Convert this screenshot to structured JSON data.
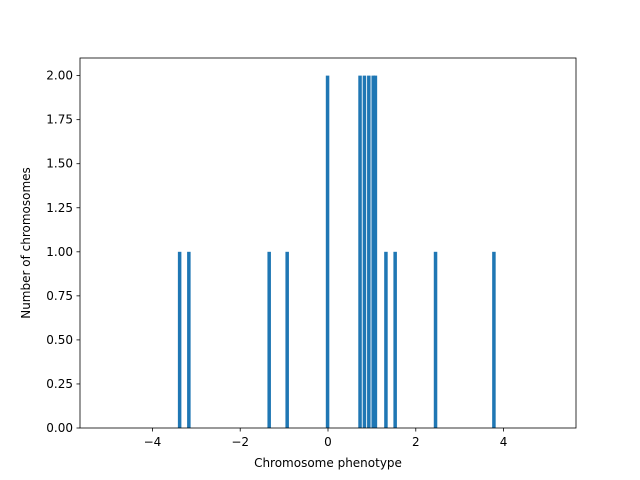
{
  "chart_data": {
    "type": "bar",
    "title": "",
    "xlabel": "Chromosome phenotype",
    "ylabel": "Number of chromosomes",
    "xlim": [
      -5.65,
      5.65
    ],
    "ylim": [
      0,
      2.1
    ],
    "xticks": [
      -4,
      -2,
      0,
      2,
      4
    ],
    "xtick_labels": [
      "−4",
      "−2",
      "0",
      "2",
      "4"
    ],
    "yticks": [
      0,
      0.25,
      0.5,
      0.75,
      1.0,
      1.25,
      1.5,
      1.75,
      2.0
    ],
    "ytick_labels": [
      "0.00",
      "0.25",
      "0.50",
      "0.75",
      "1.00",
      "1.25",
      "1.50",
      "1.75",
      "2.00"
    ],
    "bar_width": 0.08,
    "x": [
      -3.38,
      -3.17,
      -1.34,
      -0.93,
      -0.01,
      0.73,
      0.83,
      0.93,
      1.03,
      1.08,
      1.32,
      1.53,
      2.45,
      3.78
    ],
    "values": [
      1,
      1,
      1,
      1,
      2,
      2,
      2,
      2,
      2,
      2,
      1,
      1,
      1,
      1
    ],
    "bar_color": "#1f77b4",
    "grid": false,
    "legend": "none"
  }
}
